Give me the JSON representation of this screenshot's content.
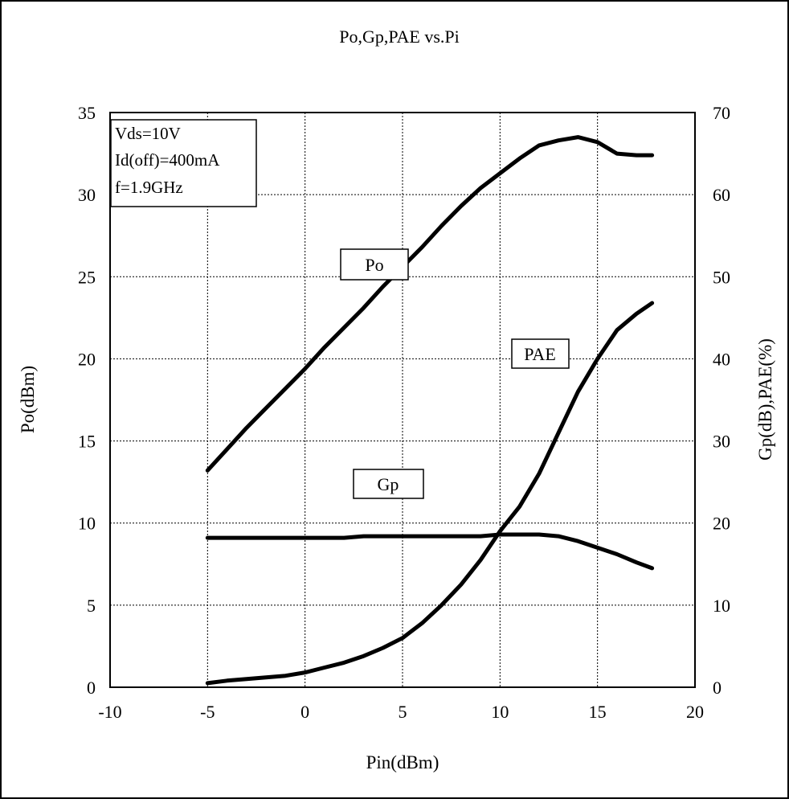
{
  "chart_data": {
    "type": "line",
    "title": "Po,Gp,PAE vs.Pi",
    "xlabel": "Pin(dBm)",
    "ylabel_left": "Po(dBm)",
    "ylabel_right": "Gp(dB),PAE(%)",
    "xlim": [
      -10,
      20
    ],
    "ylim_left": [
      0,
      35
    ],
    "ylim_right": [
      0,
      70
    ],
    "x_ticks": [
      -10,
      -5,
      0,
      5,
      10,
      15,
      20
    ],
    "y_left_ticks": [
      0,
      5,
      10,
      15,
      20,
      25,
      30,
      35
    ],
    "y_right_ticks": [
      0,
      10,
      20,
      30,
      40,
      50,
      60,
      70
    ],
    "grid": true,
    "conditions": [
      "Vds=10V",
      "Id(off)=400mA",
      "f=1.9GHz"
    ],
    "series": [
      {
        "name": "Po",
        "axis": "left",
        "x": [
          -5,
          -4,
          -3,
          -2,
          -1,
          0,
          1,
          2,
          3,
          4,
          5,
          6,
          7,
          8,
          9,
          10,
          11,
          12,
          13,
          14,
          15,
          16,
          17,
          17.8
        ],
        "y": [
          13.2,
          14.5,
          15.8,
          17.0,
          18.2,
          19.4,
          20.7,
          21.9,
          23.1,
          24.4,
          25.6,
          26.8,
          28.1,
          29.3,
          30.4,
          31.3,
          32.2,
          33.0,
          33.3,
          33.5,
          33.2,
          32.5,
          32.4,
          32.4
        ]
      },
      {
        "name": "Gp",
        "axis": "right",
        "x": [
          -5,
          -4,
          -3,
          -2,
          -1,
          0,
          1,
          2,
          3,
          4,
          5,
          6,
          7,
          8,
          9,
          10,
          11,
          12,
          13,
          14,
          15,
          16,
          17,
          17.8
        ],
        "y": [
          18.2,
          18.2,
          18.2,
          18.2,
          18.2,
          18.2,
          18.2,
          18.2,
          18.4,
          18.4,
          18.4,
          18.4,
          18.4,
          18.4,
          18.4,
          18.6,
          18.6,
          18.6,
          18.4,
          17.8,
          17.0,
          16.2,
          15.2,
          14.5
        ]
      },
      {
        "name": "PAE",
        "axis": "right",
        "x": [
          -5,
          -4,
          -3,
          -2,
          -1,
          0,
          1,
          2,
          3,
          4,
          5,
          6,
          7,
          8,
          9,
          10,
          11,
          12,
          13,
          14,
          15,
          16,
          17,
          17.8
        ],
        "y": [
          0.5,
          0.8,
          1.0,
          1.2,
          1.4,
          1.8,
          2.4,
          3.0,
          3.8,
          4.8,
          6.0,
          7.8,
          10.0,
          12.5,
          15.5,
          19.0,
          22.0,
          26.0,
          31.0,
          36.0,
          40.0,
          43.5,
          45.5,
          46.8
        ]
      }
    ],
    "curve_labels": [
      "Po",
      "Gp",
      "PAE"
    ]
  }
}
